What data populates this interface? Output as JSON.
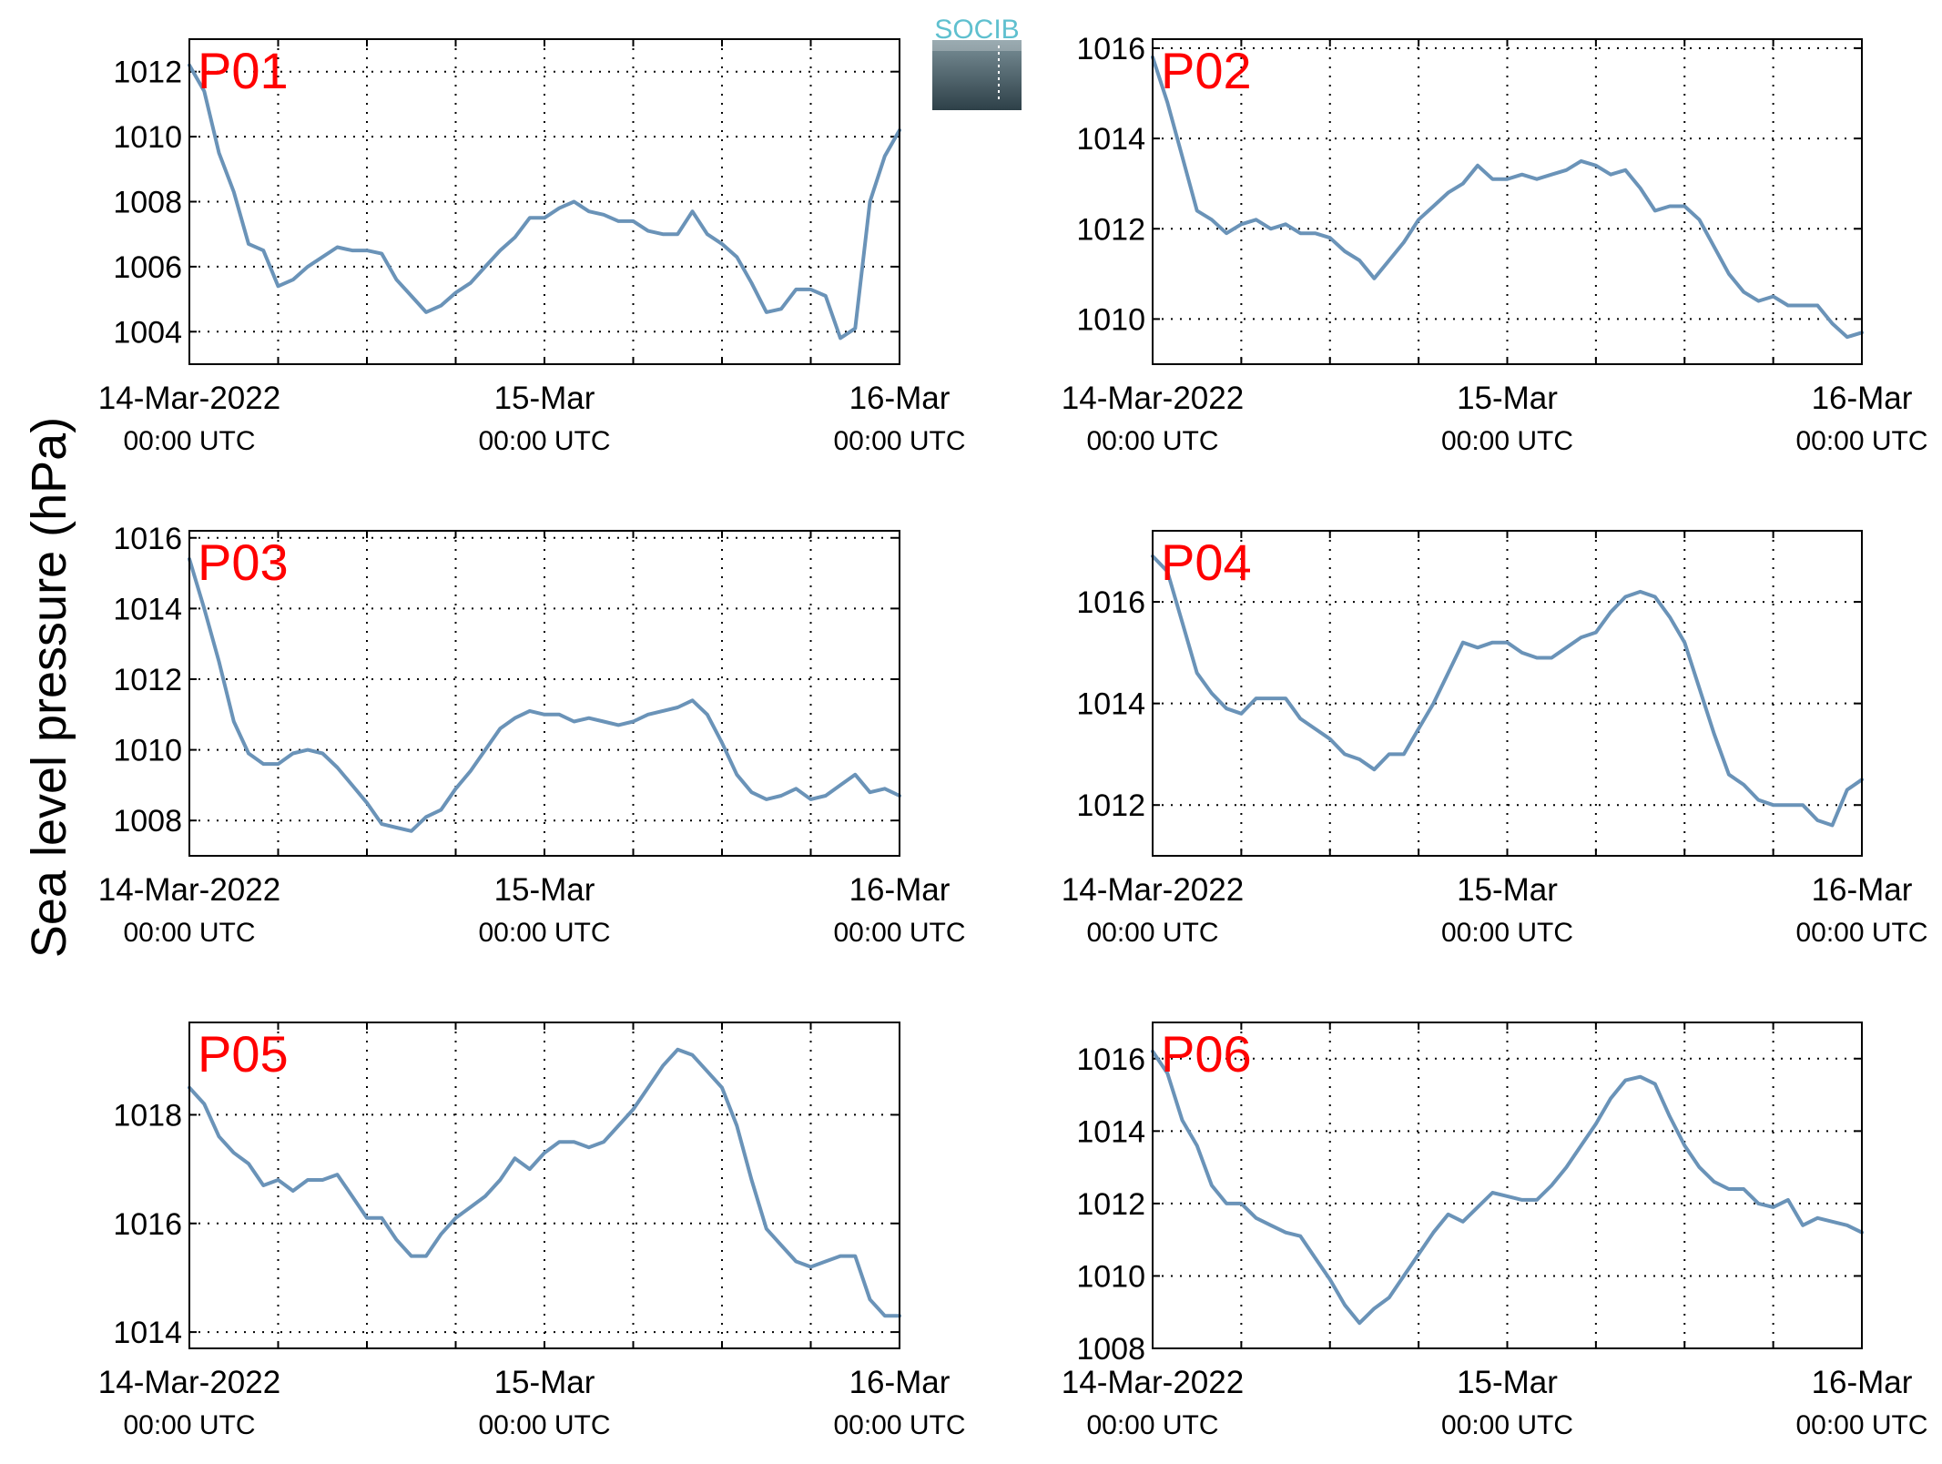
{
  "figure": {
    "ylabel": "Sea level pressure (hPa)",
    "logo_text": "SOCIB",
    "line_color": "#6a93b8",
    "station_label_color": "#ff0000"
  },
  "chart_data": [
    {
      "type": "line",
      "station": "P01",
      "x_ticks": [
        {
          "main": "14-Mar-2022",
          "sub": "00:00 UTC"
        },
        {
          "main": "15-Mar",
          "sub": "00:00 UTC"
        },
        {
          "main": "16-Mar",
          "sub": "00:00 UTC"
        }
      ],
      "ylim": [
        1003,
        1013
      ],
      "yticks": [
        1004,
        1006,
        1008,
        1010,
        1012
      ],
      "grid": true,
      "series": [
        {
          "x": [
            0,
            1,
            2,
            3,
            4,
            5,
            6,
            7,
            8,
            9,
            10,
            11,
            12,
            13,
            14,
            15,
            16,
            17,
            18,
            19,
            20,
            21,
            22,
            23,
            24,
            25,
            26,
            27,
            28,
            29,
            30,
            31,
            32,
            33,
            34,
            35,
            36,
            37,
            38,
            39,
            40,
            41,
            42,
            43,
            44,
            45,
            46,
            47,
            48
          ],
          "y": [
            1012.2,
            1011.4,
            1009.5,
            1008.3,
            1006.7,
            1006.5,
            1005.4,
            1005.6,
            1006.0,
            1006.3,
            1006.6,
            1006.5,
            1006.5,
            1006.4,
            1005.6,
            1005.1,
            1004.6,
            1004.8,
            1005.2,
            1005.5,
            1006.0,
            1006.5,
            1006.9,
            1007.5,
            1007.5,
            1007.8,
            1008.0,
            1007.7,
            1007.6,
            1007.4,
            1007.4,
            1007.1,
            1007.0,
            1007.0,
            1007.7,
            1007.0,
            1006.7,
            1006.3,
            1005.5,
            1004.6,
            1004.7,
            1005.3,
            1005.3,
            1005.1,
            1003.8,
            1004.1,
            1008.0,
            1009.4,
            1010.2
          ]
        }
      ]
    },
    {
      "type": "line",
      "station": "P02",
      "x_ticks": [
        {
          "main": "14-Mar-2022",
          "sub": "00:00 UTC"
        },
        {
          "main": "15-Mar",
          "sub": "00:00 UTC"
        },
        {
          "main": "16-Mar",
          "sub": "00:00 UTC"
        }
      ],
      "ylim": [
        1009,
        1016.2
      ],
      "yticks": [
        1010,
        1012,
        1014,
        1016
      ],
      "grid": true,
      "series": [
        {
          "x": [
            0,
            1,
            2,
            3,
            4,
            5,
            6,
            7,
            8,
            9,
            10,
            11,
            12,
            13,
            14,
            15,
            16,
            17,
            18,
            19,
            20,
            21,
            22,
            23,
            24,
            25,
            26,
            27,
            28,
            29,
            30,
            31,
            32,
            33,
            34,
            35,
            36,
            37,
            38,
            39,
            40,
            41,
            42,
            43,
            44,
            45,
            46,
            47,
            48
          ],
          "y": [
            1015.8,
            1014.8,
            1013.6,
            1012.4,
            1012.2,
            1011.9,
            1012.1,
            1012.2,
            1012.0,
            1012.1,
            1011.9,
            1011.9,
            1011.8,
            1011.5,
            1011.3,
            1010.9,
            1011.3,
            1011.7,
            1012.2,
            1012.5,
            1012.8,
            1013.0,
            1013.4,
            1013.1,
            1013.1,
            1013.2,
            1013.1,
            1013.2,
            1013.3,
            1013.5,
            1013.4,
            1013.2,
            1013.3,
            1012.9,
            1012.4,
            1012.5,
            1012.5,
            1012.2,
            1011.6,
            1011.0,
            1010.6,
            1010.4,
            1010.5,
            1010.3,
            1010.3,
            1010.3,
            1009.9,
            1009.6,
            1009.7
          ]
        }
      ]
    },
    {
      "type": "line",
      "station": "P03",
      "x_ticks": [
        {
          "main": "14-Mar-2022",
          "sub": "00:00 UTC"
        },
        {
          "main": "15-Mar",
          "sub": "00:00 UTC"
        },
        {
          "main": "16-Mar",
          "sub": "00:00 UTC"
        }
      ],
      "ylim": [
        1007,
        1016.2
      ],
      "yticks": [
        1008,
        1010,
        1012,
        1014,
        1016
      ],
      "grid": true,
      "series": [
        {
          "x": [
            0,
            1,
            2,
            3,
            4,
            5,
            6,
            7,
            8,
            9,
            10,
            11,
            12,
            13,
            14,
            15,
            16,
            17,
            18,
            19,
            20,
            21,
            22,
            23,
            24,
            25,
            26,
            27,
            28,
            29,
            30,
            31,
            32,
            33,
            34,
            35,
            36,
            37,
            38,
            39,
            40,
            41,
            42,
            43,
            44,
            45,
            46,
            47,
            48
          ],
          "y": [
            1015.4,
            1014.0,
            1012.5,
            1010.8,
            1009.9,
            1009.6,
            1009.6,
            1009.9,
            1010.0,
            1009.9,
            1009.5,
            1009.0,
            1008.5,
            1007.9,
            1007.8,
            1007.7,
            1008.1,
            1008.3,
            1008.9,
            1009.4,
            1010.0,
            1010.6,
            1010.9,
            1011.1,
            1011.0,
            1011.0,
            1010.8,
            1010.9,
            1010.8,
            1010.7,
            1010.8,
            1011.0,
            1011.1,
            1011.2,
            1011.4,
            1011.0,
            1010.2,
            1009.3,
            1008.8,
            1008.6,
            1008.7,
            1008.9,
            1008.6,
            1008.7,
            1009.0,
            1009.3,
            1008.8,
            1008.9,
            1008.7
          ]
        }
      ]
    },
    {
      "type": "line",
      "station": "P04",
      "x_ticks": [
        {
          "main": "14-Mar-2022",
          "sub": "00:00 UTC"
        },
        {
          "main": "15-Mar",
          "sub": "00:00 UTC"
        },
        {
          "main": "16-Mar",
          "sub": "00:00 UTC"
        }
      ],
      "ylim": [
        1011,
        1017.4
      ],
      "yticks": [
        1012,
        1014,
        1016
      ],
      "grid": true,
      "series": [
        {
          "x": [
            0,
            1,
            2,
            3,
            4,
            5,
            6,
            7,
            8,
            9,
            10,
            11,
            12,
            13,
            14,
            15,
            16,
            17,
            18,
            19,
            20,
            21,
            22,
            23,
            24,
            25,
            26,
            27,
            28,
            29,
            30,
            31,
            32,
            33,
            34,
            35,
            36,
            37,
            38,
            39,
            40,
            41,
            42,
            43,
            44,
            45,
            46,
            47,
            48
          ],
          "y": [
            1016.9,
            1016.6,
            1015.6,
            1014.6,
            1014.2,
            1013.9,
            1013.8,
            1014.1,
            1014.1,
            1014.1,
            1013.7,
            1013.5,
            1013.3,
            1013.0,
            1012.9,
            1012.7,
            1013.0,
            1013.0,
            1013.5,
            1014.0,
            1014.6,
            1015.2,
            1015.1,
            1015.2,
            1015.2,
            1015.0,
            1014.9,
            1014.9,
            1015.1,
            1015.3,
            1015.4,
            1015.8,
            1016.1,
            1016.2,
            1016.1,
            1015.7,
            1015.2,
            1014.3,
            1013.4,
            1012.6,
            1012.4,
            1012.1,
            1012.0,
            1012.0,
            1012.0,
            1011.7,
            1011.6,
            1012.3,
            1012.5
          ]
        }
      ]
    },
    {
      "type": "line",
      "station": "P05",
      "x_ticks": [
        {
          "main": "14-Mar-2022",
          "sub": "00:00 UTC"
        },
        {
          "main": "15-Mar",
          "sub": "00:00 UTC"
        },
        {
          "main": "16-Mar",
          "sub": "00:00 UTC"
        }
      ],
      "ylim": [
        1013.7,
        1019.7
      ],
      "yticks": [
        1014,
        1016,
        1018
      ],
      "grid": true,
      "series": [
        {
          "x": [
            0,
            1,
            2,
            3,
            4,
            5,
            6,
            7,
            8,
            9,
            10,
            11,
            12,
            13,
            14,
            15,
            16,
            17,
            18,
            19,
            20,
            21,
            22,
            23,
            24,
            25,
            26,
            27,
            28,
            29,
            30,
            31,
            32,
            33,
            34,
            35,
            36,
            37,
            38,
            39,
            40,
            41,
            42,
            43,
            44,
            45,
            46,
            47,
            48
          ],
          "y": [
            1018.5,
            1018.2,
            1017.6,
            1017.3,
            1017.1,
            1016.7,
            1016.8,
            1016.6,
            1016.8,
            1016.8,
            1016.9,
            1016.5,
            1016.1,
            1016.1,
            1015.7,
            1015.4,
            1015.4,
            1015.8,
            1016.1,
            1016.3,
            1016.5,
            1016.8,
            1017.2,
            1017.0,
            1017.3,
            1017.5,
            1017.5,
            1017.4,
            1017.5,
            1017.8,
            1018.1,
            1018.5,
            1018.9,
            1019.2,
            1019.1,
            1018.8,
            1018.5,
            1017.8,
            1016.8,
            1015.9,
            1015.6,
            1015.3,
            1015.2,
            1015.3,
            1015.4,
            1015.4,
            1014.6,
            1014.3,
            1014.3
          ]
        }
      ]
    },
    {
      "type": "line",
      "station": "P06",
      "x_ticks": [
        {
          "main": "14-Mar-2022",
          "sub": "00:00 UTC"
        },
        {
          "main": "15-Mar",
          "sub": "00:00 UTC"
        },
        {
          "main": "16-Mar",
          "sub": "00:00 UTC"
        }
      ],
      "ylim": [
        1008,
        1017
      ],
      "yticks": [
        1008,
        1010,
        1012,
        1014,
        1016
      ],
      "grid": true,
      "series": [
        {
          "x": [
            0,
            1,
            2,
            3,
            4,
            5,
            6,
            7,
            8,
            9,
            10,
            11,
            12,
            13,
            14,
            15,
            16,
            17,
            18,
            19,
            20,
            21,
            22,
            23,
            24,
            25,
            26,
            27,
            28,
            29,
            30,
            31,
            32,
            33,
            34,
            35,
            36,
            37,
            38,
            39,
            40,
            41,
            42,
            43,
            44,
            45,
            46,
            47,
            48
          ],
          "y": [
            1016.2,
            1015.6,
            1014.3,
            1013.6,
            1012.5,
            1012.0,
            1012.0,
            1011.6,
            1011.4,
            1011.2,
            1011.1,
            1010.5,
            1009.9,
            1009.2,
            1008.7,
            1009.1,
            1009.4,
            1010.0,
            1010.6,
            1011.2,
            1011.7,
            1011.5,
            1011.9,
            1012.3,
            1012.2,
            1012.1,
            1012.1,
            1012.5,
            1013.0,
            1013.6,
            1014.2,
            1014.9,
            1015.4,
            1015.5,
            1015.3,
            1014.4,
            1013.6,
            1013.0,
            1012.6,
            1012.4,
            1012.4,
            1012.0,
            1011.9,
            1012.1,
            1011.4,
            1011.6,
            1011.5,
            1011.4,
            1011.2
          ]
        }
      ]
    }
  ]
}
